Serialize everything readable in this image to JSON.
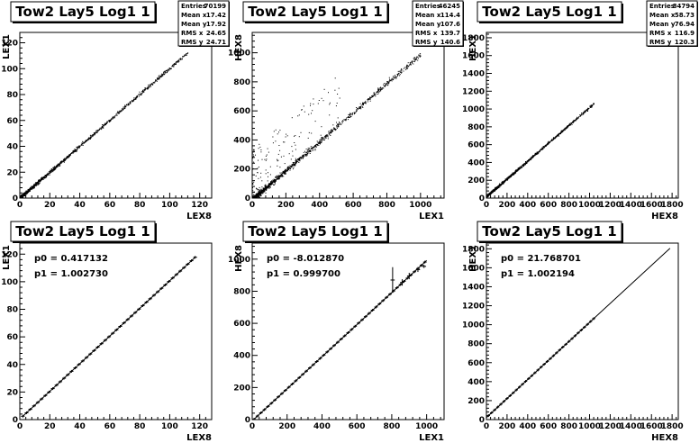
{
  "chart_data": [
    {
      "type": "scatter",
      "title": "Tow2 Lay5 Log1 1",
      "xlabel": "LEX8",
      "ylabel": "LEX1",
      "xlim": [
        0,
        128
      ],
      "ylim": [
        0,
        128
      ],
      "xticks": [
        0,
        20,
        40,
        60,
        80,
        100,
        120
      ],
      "yticks": [
        0,
        20,
        40,
        60,
        80,
        100,
        120
      ],
      "stats": [
        {
          "label": "Entries",
          "value": "70199"
        },
        {
          "label": "Mean x",
          "value": "17.42"
        },
        {
          "label": "Mean y",
          "value": "17.92"
        },
        {
          "label": "RMS x",
          "value": "24.65"
        },
        {
          "label": "RMS y",
          "value": "24.71"
        }
      ],
      "relation": {
        "slope": 1.0027,
        "intercept": 0.42,
        "xrange": [
          0,
          112
        ],
        "spread": 0.8,
        "outlier_frac": 0
      }
    },
    {
      "type": "scatter",
      "title": "Tow2 Lay5 Log1 1",
      "xlabel": "LEX1",
      "ylabel": "HEX8",
      "xlim": [
        0,
        1140
      ],
      "ylim": [
        0,
        1140
      ],
      "xticks": [
        0,
        200,
        400,
        600,
        800,
        1000
      ],
      "yticks": [
        0,
        200,
        400,
        600,
        800,
        1000
      ],
      "stats": [
        {
          "label": "Entries",
          "value": "46245"
        },
        {
          "label": "Mean x",
          "value": "114.4"
        },
        {
          "label": "Mean y",
          "value": "107.6"
        },
        {
          "label": "RMS x",
          "value": "139.7"
        },
        {
          "label": "RMS y",
          "value": "140.6"
        }
      ],
      "relation": {
        "slope": 0.9997,
        "intercept": -8.0,
        "xrange": [
          0,
          1000
        ],
        "spread": 12,
        "outlier_frac": 0.12
      }
    },
    {
      "type": "scatter",
      "title": "Tow2 Lay5 Log1 1",
      "xlabel": "HEX8",
      "ylabel": "HEX1",
      "xlim": [
        0,
        1860
      ],
      "ylim": [
        0,
        1860
      ],
      "xticks": [
        0,
        200,
        400,
        600,
        800,
        1000,
        1200,
        1400,
        1600,
        1800
      ],
      "yticks": [
        0,
        200,
        400,
        600,
        800,
        1000,
        1200,
        1400,
        1600,
        1800
      ],
      "stats": [
        {
          "label": "Entries",
          "value": "84794"
        },
        {
          "label": "Mean x",
          "value": "58.73"
        },
        {
          "label": "Mean y",
          "value": "76.94"
        },
        {
          "label": "RMS x",
          "value": "116.9"
        },
        {
          "label": "RMS y",
          "value": "120.3"
        }
      ],
      "relation": {
        "slope": 1.0022,
        "intercept": 21.8,
        "xrange": [
          0,
          1040
        ],
        "spread": 8,
        "outlier_frac": 0
      }
    },
    {
      "type": "line",
      "title": "Tow2 Lay5 Log1 1",
      "xlabel": "LEX8",
      "ylabel": "LEX1",
      "xlim": [
        0,
        128
      ],
      "ylim": [
        0,
        128
      ],
      "xticks": [
        0,
        20,
        40,
        60,
        80,
        100,
        120
      ],
      "yticks": [
        0,
        20,
        40,
        60,
        80,
        100,
        120
      ],
      "fit": {
        "p0_text": "p0 = 0.417132",
        "p1_text": "p1 = 1.002730",
        "p0": 0.417132,
        "p1": 1.00273
      },
      "profile": {
        "x_start": 2,
        "x_end": 117,
        "bin": 2.5
      }
    },
    {
      "type": "line",
      "title": "Tow2 Lay5 Log1 1",
      "xlabel": "LEX1",
      "ylabel": "HEX8",
      "xlim": [
        0,
        1100
      ],
      "ylim": [
        0,
        1100
      ],
      "xticks": [
        0,
        200,
        400,
        600,
        800,
        1000
      ],
      "yticks": [
        0,
        200,
        400,
        600,
        800,
        1000
      ],
      "fit": {
        "p0_text": "p0 = -8.012870",
        "p1_text": "p1 = 0.999700",
        "p0": -8.01287,
        "p1": 0.9997
      },
      "profile": {
        "x_start": 10,
        "x_end": 1000,
        "bin": 20
      },
      "error_points": [
        {
          "x": 805,
          "y": 870,
          "err": 80
        },
        {
          "x": 860,
          "y": 855,
          "err": 20
        },
        {
          "x": 900,
          "y": 895,
          "err": 20
        },
        {
          "x": 950,
          "y": 935,
          "err": 15
        },
        {
          "x": 985,
          "y": 955,
          "err": 10
        }
      ]
    },
    {
      "type": "line",
      "title": "Tow2 Lay5 Log1 1",
      "xlabel": "HEX8",
      "ylabel": "HEX1",
      "xlim": [
        0,
        1860
      ],
      "ylim": [
        0,
        1860
      ],
      "xticks": [
        0,
        200,
        400,
        600,
        800,
        1000,
        1200,
        1400,
        1600,
        1800
      ],
      "yticks": [
        0,
        200,
        400,
        600,
        800,
        1000,
        1200,
        1400,
        1600,
        1800
      ],
      "fit": {
        "p0_text": "p0 = 21.768701",
        "p1_text": "p1 = 1.002194",
        "p0": 21.768701,
        "p1": 1.002194
      },
      "profile": {
        "x_start": 20,
        "x_end": 1060,
        "bin": 30
      },
      "fit_line_xrange": [
        0,
        1780
      ]
    }
  ]
}
